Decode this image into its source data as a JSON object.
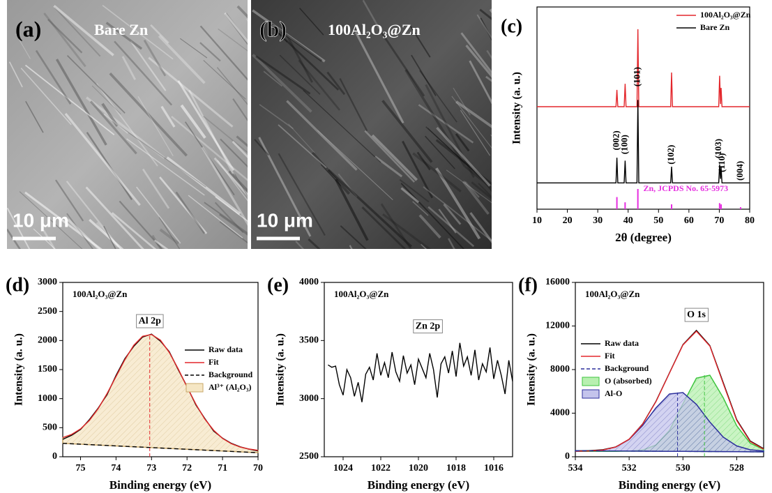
{
  "images": [
    {
      "label": "(a)",
      "caption": "Bare Zn",
      "scale_bar": "10 μm"
    },
    {
      "label": "(b)",
      "caption": "100Al₂O₃@Zn",
      "scale_bar": "10 μm"
    }
  ],
  "chart_data": [
    {
      "type": "line",
      "label": "(c)",
      "xlabel": "2θ (degree)",
      "ylabel": "Intensity (a. u.)",
      "xlim": [
        10,
        80
      ],
      "ylim": [
        0,
        100
      ],
      "xticks": [
        10,
        20,
        30,
        40,
        50,
        60,
        70,
        80
      ],
      "legend": "upper right",
      "series": [
        {
          "name": "100Al₂O₃@Zn",
          "color": "#e3262b",
          "style": "line",
          "in_legend": true,
          "x": [
            10,
            36.0,
            36.3,
            36.6,
            38.7,
            39.0,
            39.3,
            42.9,
            43.2,
            43.5,
            54.0,
            54.3,
            54.6,
            69.8,
            70.1,
            70.4,
            70.6,
            70.9,
            80
          ],
          "values": [
            50.7,
            50.7,
            59,
            50.7,
            50.7,
            62,
            50.7,
            50.7,
            89,
            50.7,
            50.7,
            67.6,
            50.7,
            50.7,
            66,
            52,
            60,
            50.7,
            50.7
          ]
        },
        {
          "name": "Bare Zn",
          "color": "#000000",
          "style": "line",
          "in_legend": true,
          "x": [
            10,
            36.0,
            36.3,
            36.6,
            38.7,
            39.0,
            39.3,
            42.9,
            43.2,
            43.5,
            54.0,
            54.3,
            54.6,
            69.8,
            70.1,
            70.4,
            70.6,
            70.9,
            80
          ],
          "values": [
            13,
            13,
            25.5,
            13,
            13,
            24,
            13,
            13,
            54,
            13,
            13,
            21,
            13,
            13,
            22,
            15,
            20.7,
            13,
            13
          ]
        },
        {
          "name": "Zn, JCPDS No. 65-5973",
          "color": "#e62de0",
          "style": "stick",
          "in_legend": false,
          "x": [
            36.3,
            39.0,
            43.2,
            54.3,
            70.1,
            70.6,
            77.0
          ],
          "values": [
            6,
            3.4,
            10,
            2.4,
            3,
            2.4,
            1
          ]
        }
      ],
      "annotations": [
        {
          "text": "(002)",
          "x": 36.3,
          "y": 34,
          "rotate": true
        },
        {
          "text": "(100)",
          "x": 39.0,
          "y": 32,
          "rotate": true
        },
        {
          "text": "(101)",
          "x": 43.2,
          "y": 65.5,
          "rotate": true
        },
        {
          "text": "(102)",
          "x": 54.3,
          "y": 27,
          "rotate": true
        },
        {
          "text": "(103)",
          "x": 69.9,
          "y": 30,
          "rotate": true
        },
        {
          "text": "(110)",
          "x": 71.1,
          "y": 23,
          "rotate": true
        },
        {
          "text": "(004)",
          "x": 77.0,
          "y": 19,
          "rotate": true
        }
      ]
    },
    {
      "type": "line",
      "label": "(d)",
      "subtitle": "100Al₂O₃@Zn",
      "xlabel": "Binding energy (eV)",
      "ylabel": "Intensity (a. u.)",
      "xlim": [
        75.5,
        70
      ],
      "ylim": [
        0,
        3000
      ],
      "xticks": [
        75,
        74,
        73,
        72,
        71,
        70
      ],
      "yticks": [
        0,
        500,
        1000,
        1500,
        2000,
        2500,
        3000
      ],
      "legend": "center right",
      "series": [
        {
          "name": "Raw data",
          "color": "#000000",
          "style": "line",
          "x": [
            75.5,
            75.25,
            75,
            74.75,
            74.5,
            74.25,
            74,
            73.75,
            73.5,
            73.25,
            73,
            72.75,
            72.5,
            72.25,
            72,
            71.75,
            71.5,
            71.25,
            71,
            70.75,
            70.5,
            70.25,
            70
          ],
          "values": [
            300,
            370,
            470,
            640,
            840,
            1070,
            1400,
            1690,
            1900,
            2060,
            2110,
            1990,
            1810,
            1500,
            1210,
            890,
            660,
            440,
            320,
            230,
            170,
            130,
            100
          ]
        },
        {
          "name": "Fit",
          "color": "#e3262b",
          "style": "line",
          "x": [
            75.5,
            75.25,
            75,
            74.75,
            74.5,
            74.25,
            74,
            73.75,
            73.5,
            73.25,
            73,
            72.75,
            72.5,
            72.25,
            72,
            71.75,
            71.5,
            71.25,
            71,
            70.75,
            70.5,
            70.25,
            70
          ],
          "values": [
            329,
            384,
            479,
            625,
            830,
            1088,
            1381,
            1672,
            1918,
            2073,
            2104,
            2006,
            1797,
            1512,
            1200,
            904,
            651,
            455,
            316,
            224,
            167,
            132,
            111
          ]
        },
        {
          "name": "Background",
          "color": "#000000",
          "style": "dashed",
          "x": [
            75.5,
            70
          ],
          "values": [
            230,
            70
          ]
        },
        {
          "name": "Al³⁺ (Al₂O₃)",
          "color": "#c9a86a",
          "fill": "#f5e6c4",
          "style": "area",
          "x": [
            75.5,
            75.25,
            75,
            74.75,
            74.5,
            74.25,
            74,
            73.75,
            73.5,
            73.25,
            73,
            72.75,
            72.5,
            72.25,
            72,
            71.75,
            71.5,
            71.25,
            71,
            70.75,
            70.5,
            70.25,
            70
          ],
          "values": [
            329,
            384,
            479,
            625,
            830,
            1088,
            1381,
            1672,
            1918,
            2073,
            2104,
            2006,
            1797,
            1512,
            1200,
            904,
            651,
            455,
            316,
            224,
            167,
            132,
            111
          ]
        }
      ],
      "markers": [
        {
          "x": 73.05,
          "y": 2104,
          "color": "#e3262b"
        }
      ],
      "annotations": [
        {
          "text": "Al 2p",
          "x": 73.05,
          "y": 2330,
          "boxed": true
        }
      ]
    },
    {
      "type": "line",
      "label": "(e)",
      "subtitle": "100Al₂O₃@Zn",
      "xlabel": "Binding energy (eV)",
      "ylabel": "Intensity (a. u.)",
      "xlim": [
        1025,
        1015
      ],
      "ylim": [
        2500,
        4000
      ],
      "xticks": [
        1024,
        1022,
        1020,
        1018,
        1016
      ],
      "yticks": [
        2500,
        3000,
        3500,
        4000
      ],
      "series": [
        {
          "color": "#000000",
          "style": "line",
          "x": [
            1024.8,
            1024.6,
            1024.4,
            1024.2,
            1024,
            1023.8,
            1023.6,
            1023.4,
            1023.2,
            1023,
            1022.8,
            1022.6,
            1022.4,
            1022.2,
            1022,
            1021.8,
            1021.6,
            1021.4,
            1021.2,
            1021,
            1020.8,
            1020.6,
            1020.4,
            1020.2,
            1020,
            1019.8,
            1019.6,
            1019.4,
            1019.2,
            1019,
            1018.8,
            1018.6,
            1018.4,
            1018.2,
            1018,
            1017.8,
            1017.6,
            1017.4,
            1017.2,
            1017,
            1016.8,
            1016.6,
            1016.4,
            1016.2,
            1016,
            1015.8,
            1015.6,
            1015.4,
            1015.2,
            1015
          ],
          "values": [
            3290,
            3270,
            3280,
            3120,
            3030,
            3250,
            3180,
            3020,
            3140,
            2970,
            3210,
            3270,
            3160,
            3390,
            3200,
            3310,
            3180,
            3400,
            3230,
            3150,
            3370,
            3220,
            3290,
            3120,
            3340,
            3260,
            3180,
            3390,
            3250,
            3010,
            3300,
            3360,
            3220,
            3410,
            3190,
            3480,
            3280,
            3360,
            3200,
            3420,
            3160,
            3300,
            3230,
            3440,
            3170,
            3330,
            3200,
            3040,
            3330,
            3150
          ]
        }
      ],
      "annotations": [
        {
          "text": "Zn 2p",
          "x": 1019.5,
          "y": 3620,
          "boxed": true
        }
      ]
    },
    {
      "type": "line",
      "label": "(f)",
      "subtitle": "100Al₂O₃@Zn",
      "xlabel": "Binding energy (eV)",
      "ylabel": "Intensity (a. u.)",
      "xlim": [
        534,
        527
      ],
      "ylim": [
        0,
        16000
      ],
      "xticks": [
        534,
        532,
        530,
        528
      ],
      "yticks": [
        0,
        4000,
        8000,
        12000,
        16000
      ],
      "legend": "center left",
      "series": [
        {
          "name": "Raw data",
          "color": "#000000",
          "style": "line",
          "x": [
            534,
            533.5,
            533,
            532.5,
            532,
            531.5,
            531,
            530.5,
            530,
            529.5,
            529,
            528.5,
            528,
            527.5,
            527
          ],
          "values": [
            520,
            560,
            640,
            900,
            1600,
            3000,
            5100,
            7700,
            10300,
            11600,
            10200,
            6800,
            3400,
            1450,
            750
          ]
        },
        {
          "name": "Fit",
          "color": "#e3262b",
          "style": "line",
          "x": [
            534,
            533.5,
            533,
            532.5,
            532,
            531.5,
            531,
            530.5,
            530,
            529.5,
            529,
            528.5,
            528,
            527.5,
            527
          ],
          "values": [
            504,
            524,
            609,
            891,
            1605,
            2978,
            5066,
            7680,
            10260,
            11517,
            10158,
            6707,
            3330,
            1393,
            697
          ]
        },
        {
          "name": "Background",
          "color": "#2c2f9c",
          "style": "dashed",
          "x": [
            534,
            527
          ],
          "values": [
            550,
            450
          ]
        },
        {
          "name": "O (absorbed)",
          "color": "#3ec43e",
          "fill": "#b8f0b0",
          "style": "area",
          "x": [
            534,
            533.5,
            533,
            532.5,
            532,
            531.5,
            531,
            530.5,
            530,
            529.5,
            529,
            528.5,
            528,
            527.5,
            527
          ],
          "values": [
            500,
            500,
            500,
            501,
            516,
            615,
            1073,
            2422,
            4870,
            7210,
            7480,
            5410,
            2840,
            1250,
            664
          ]
        },
        {
          "name": "Al-O",
          "color": "#2c2f9c",
          "fill": "#c4c4ec",
          "style": "area",
          "x": [
            534,
            533.5,
            533,
            532.5,
            532,
            531.5,
            531,
            530.5,
            530,
            529.5,
            529,
            528.5,
            528,
            527.5,
            527
          ],
          "values": [
            504,
            524,
            609,
            890,
            1589,
            2863,
            4493,
            5758,
            5890,
            4807,
            3178,
            1797,
            990,
            643,
            533
          ]
        }
      ],
      "markers": [
        {
          "x": 529.2,
          "y": 7700,
          "color": "#3ec43e"
        },
        {
          "x": 530.2,
          "y": 5900,
          "color": "#2c2f9c"
        }
      ],
      "annotations": [
        {
          "text": "O 1s",
          "x": 529.5,
          "y": 13000,
          "boxed": true
        }
      ]
    }
  ]
}
